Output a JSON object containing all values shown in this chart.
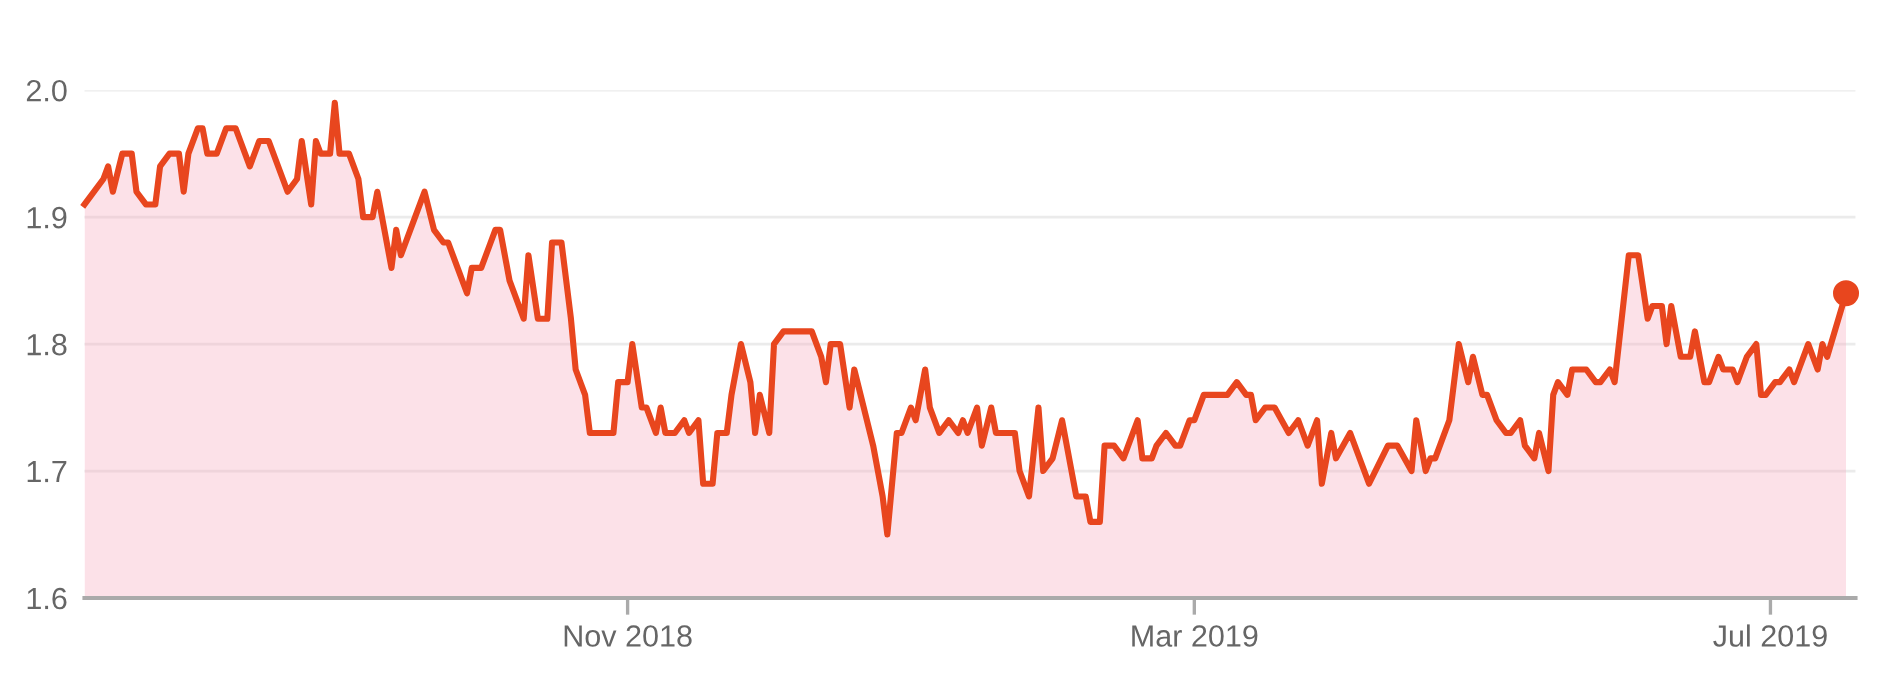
{
  "chart_data": {
    "type": "area",
    "x": [
      "2018-07-09",
      "2018-07-13",
      "2018-07-14",
      "2018-07-15",
      "2018-07-17",
      "2018-07-19",
      "2018-07-20",
      "2018-07-22",
      "2018-07-24",
      "2018-07-25",
      "2018-07-27",
      "2018-07-29",
      "2018-07-30",
      "2018-07-31",
      "2018-08-02",
      "2018-08-03",
      "2018-08-04",
      "2018-08-06",
      "2018-08-08",
      "2018-08-10",
      "2018-08-11",
      "2018-08-13",
      "2018-08-15",
      "2018-08-17",
      "2018-08-20",
      "2018-08-21",
      "2018-08-23",
      "2018-08-24",
      "2018-08-26",
      "2018-08-27",
      "2018-08-28",
      "2018-08-30",
      "2018-08-31",
      "2018-09-01",
      "2018-09-03",
      "2018-09-05",
      "2018-09-06",
      "2018-09-08",
      "2018-09-09",
      "2018-09-11",
      "2018-09-12",
      "2018-09-13",
      "2018-09-14",
      "2018-09-15",
      "2018-09-17",
      "2018-09-19",
      "2018-09-21",
      "2018-09-23",
      "2018-09-24",
      "2018-09-26",
      "2018-09-28",
      "2018-09-29",
      "2018-10-01",
      "2018-10-03",
      "2018-10-04",
      "2018-10-05",
      "2018-10-07",
      "2018-10-08",
      "2018-10-10",
      "2018-10-11",
      "2018-10-13",
      "2018-10-15",
      "2018-10-16",
      "2018-10-18",
      "2018-10-20",
      "2018-10-21",
      "2018-10-23",
      "2018-10-24",
      "2018-10-29",
      "2018-10-30",
      "2018-11-01",
      "2018-11-02",
      "2018-11-04",
      "2018-11-05",
      "2018-11-07",
      "2018-11-08",
      "2018-11-09",
      "2018-11-11",
      "2018-11-13",
      "2018-11-14",
      "2018-11-16",
      "2018-11-17",
      "2018-11-19",
      "2018-11-20",
      "2018-11-22",
      "2018-11-23",
      "2018-11-25",
      "2018-11-27",
      "2018-11-28",
      "2018-11-29",
      "2018-12-01",
      "2018-12-02",
      "2018-12-04",
      "2018-12-10",
      "2018-12-12",
      "2018-12-13",
      "2018-12-14",
      "2018-12-16",
      "2018-12-18",
      "2018-12-19",
      "2018-12-21",
      "2018-12-23",
      "2018-12-25",
      "2018-12-26",
      "2018-12-28",
      "2018-12-29",
      "2018-12-31",
      "2019-01-01",
      "2019-01-03",
      "2019-01-04",
      "2019-01-06",
      "2019-01-08",
      "2019-01-10",
      "2019-01-11",
      "2019-01-12",
      "2019-01-14",
      "2019-01-15",
      "2019-01-17",
      "2019-01-18",
      "2019-01-22",
      "2019-01-23",
      "2019-01-25",
      "2019-01-27",
      "2019-01-28",
      "2019-01-30",
      "2019-02-01",
      "2019-02-03",
      "2019-02-04",
      "2019-02-06",
      "2019-02-07",
      "2019-02-09",
      "2019-02-10",
      "2019-02-12",
      "2019-02-14",
      "2019-02-15",
      "2019-02-17",
      "2019-02-18",
      "2019-02-20",
      "2019-02-21",
      "2019-02-23",
      "2019-02-25",
      "2019-02-26",
      "2019-02-28",
      "2019-03-01",
      "2019-03-03",
      "2019-03-08",
      "2019-03-10",
      "2019-03-12",
      "2019-03-13",
      "2019-03-14",
      "2019-03-16",
      "2019-03-18",
      "2019-03-21",
      "2019-03-23",
      "2019-03-25",
      "2019-03-27",
      "2019-03-28",
      "2019-03-30",
      "2019-03-31",
      "2019-04-03",
      "2019-04-07",
      "2019-04-11",
      "2019-04-13",
      "2019-04-16",
      "2019-04-17",
      "2019-04-19",
      "2019-04-20",
      "2019-04-21",
      "2019-04-24",
      "2019-04-26",
      "2019-04-28",
      "2019-04-29",
      "2019-05-01",
      "2019-05-02",
      "2019-05-04",
      "2019-05-06",
      "2019-05-07",
      "2019-05-09",
      "2019-05-10",
      "2019-05-12",
      "2019-05-13",
      "2019-05-15",
      "2019-05-16",
      "2019-05-17",
      "2019-05-19",
      "2019-05-20",
      "2019-05-23",
      "2019-05-25",
      "2019-05-26",
      "2019-05-28",
      "2019-05-29",
      "2019-06-01",
      "2019-06-03",
      "2019-06-05",
      "2019-06-06",
      "2019-06-08",
      "2019-06-09",
      "2019-06-10",
      "2019-06-12",
      "2019-06-14",
      "2019-06-15",
      "2019-06-17",
      "2019-06-18",
      "2019-06-20",
      "2019-06-21",
      "2019-06-23",
      "2019-06-24",
      "2019-06-26",
      "2019-06-28",
      "2019-06-29",
      "2019-06-30",
      "2019-07-02",
      "2019-07-03",
      "2019-07-05",
      "2019-07-06",
      "2019-07-07",
      "2019-07-09",
      "2019-07-11",
      "2019-07-12",
      "2019-07-13",
      "2019-07-17"
    ],
    "series": [
      {
        "color": "#e8461e",
        "values": [
          1.91,
          1.93,
          1.94,
          1.92,
          1.95,
          1.95,
          1.92,
          1.91,
          1.91,
          1.94,
          1.95,
          1.95,
          1.92,
          1.95,
          1.97,
          1.97,
          1.95,
          1.95,
          1.97,
          1.97,
          1.96,
          1.94,
          1.96,
          1.96,
          1.93,
          1.92,
          1.93,
          1.96,
          1.91,
          1.96,
          1.95,
          1.95,
          1.99,
          1.95,
          1.95,
          1.93,
          1.9,
          1.9,
          1.92,
          1.88,
          1.86,
          1.89,
          1.87,
          1.88,
          1.9,
          1.92,
          1.89,
          1.88,
          1.88,
          1.86,
          1.84,
          1.86,
          1.86,
          1.88,
          1.89,
          1.89,
          1.85,
          1.84,
          1.82,
          1.87,
          1.82,
          1.82,
          1.88,
          1.88,
          1.82,
          1.78,
          1.76,
          1.73,
          1.73,
          1.77,
          1.77,
          1.8,
          1.75,
          1.75,
          1.73,
          1.75,
          1.73,
          1.73,
          1.74,
          1.73,
          1.74,
          1.69,
          1.69,
          1.73,
          1.73,
          1.76,
          1.8,
          1.77,
          1.73,
          1.76,
          1.73,
          1.8,
          1.81,
          1.81,
          1.79,
          1.77,
          1.8,
          1.8,
          1.75,
          1.78,
          1.75,
          1.72,
          1.68,
          1.65,
          1.73,
          1.73,
          1.75,
          1.74,
          1.78,
          1.75,
          1.73,
          1.74,
          1.73,
          1.74,
          1.73,
          1.75,
          1.72,
          1.75,
          1.73,
          1.73,
          1.7,
          1.68,
          1.75,
          1.7,
          1.71,
          1.74,
          1.7,
          1.68,
          1.68,
          1.66,
          1.66,
          1.72,
          1.72,
          1.71,
          1.72,
          1.74,
          1.71,
          1.71,
          1.72,
          1.73,
          1.72,
          1.72,
          1.74,
          1.74,
          1.76,
          1.76,
          1.77,
          1.76,
          1.76,
          1.74,
          1.75,
          1.75,
          1.73,
          1.74,
          1.72,
          1.74,
          1.69,
          1.73,
          1.71,
          1.73,
          1.69,
          1.72,
          1.72,
          1.7,
          1.74,
          1.7,
          1.71,
          1.71,
          1.74,
          1.8,
          1.77,
          1.79,
          1.76,
          1.76,
          1.74,
          1.73,
          1.73,
          1.74,
          1.72,
          1.71,
          1.73,
          1.7,
          1.76,
          1.77,
          1.76,
          1.78,
          1.78,
          1.77,
          1.77,
          1.78,
          1.77,
          1.87,
          1.87,
          1.82,
          1.83,
          1.83,
          1.8,
          1.83,
          1.79,
          1.79,
          1.81,
          1.77,
          1.77,
          1.79,
          1.78,
          1.78,
          1.77,
          1.79,
          1.8,
          1.76,
          1.76,
          1.77,
          1.77,
          1.78,
          1.77,
          1.78,
          1.8,
          1.78,
          1.8,
          1.79,
          1.84
        ]
      },
      {
        "type": "scatter",
        "color": "#e8461e",
        "x": [
          "2019-07-17"
        ],
        "values": [
          1.84
        ],
        "marker": "circle"
      }
    ],
    "xlim": [
      "2018-07-09",
      "2019-07-19"
    ],
    "ylim": [
      1.6,
      2.0
    ],
    "yticks": [
      1.6,
      1.7,
      1.8,
      1.9,
      {
        "value": 2.0,
        "label": "2.0"
      }
    ],
    "xticks": [
      {
        "value": "2018-11-01",
        "label": "Nov 2018"
      },
      {
        "value": "2019-03-01",
        "label": "Mar 2019"
      },
      {
        "value": "2019-07-01",
        "label": "Jul 2019"
      }
    ],
    "grid": "y",
    "legend": false,
    "marker": "none",
    "line_style": "solid"
  }
}
